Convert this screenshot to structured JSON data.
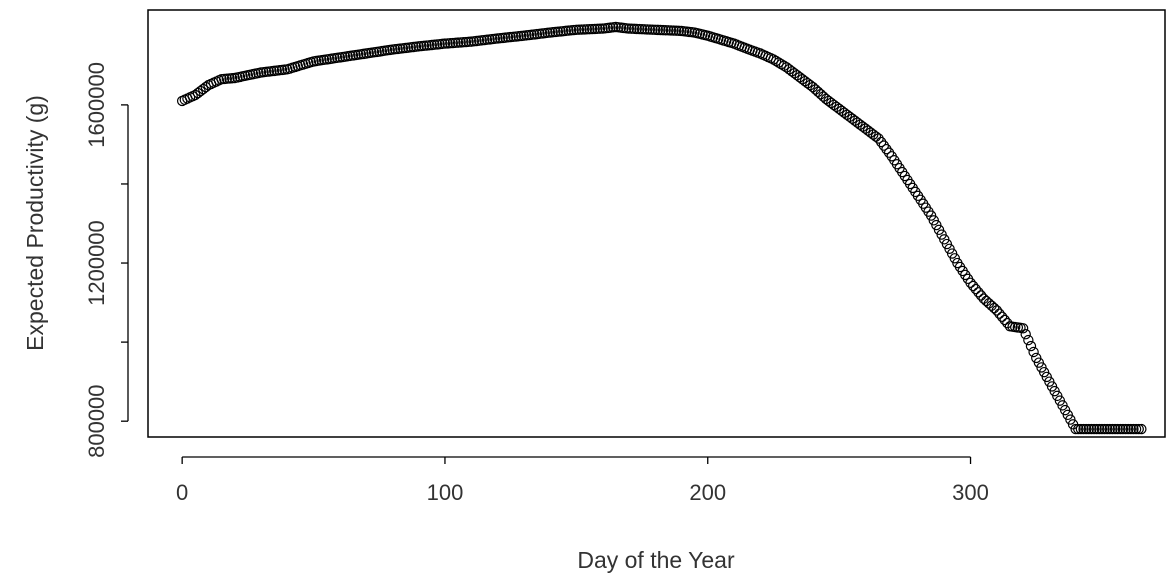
{
  "chart_data": {
    "type": "scatter",
    "title": "",
    "xlabel": "Day of the Year",
    "ylabel": "Expected Productivity (g)",
    "xlim": [
      -13,
      374
    ],
    "ylim": [
      760000,
      1840000
    ],
    "xticks": [
      0,
      100,
      200,
      300
    ],
    "yticks": [
      800000,
      1200000,
      1600000
    ],
    "ytick_labels": [
      "800000",
      "1200000",
      "1600000"
    ],
    "yticks_minor": [
      1000000,
      1400000
    ],
    "grid": false,
    "legend": "none",
    "marker": "open-circle",
    "series": [
      {
        "x": [
          0,
          5,
          10,
          15,
          20,
          25,
          30,
          40,
          50,
          60,
          70,
          80,
          90,
          100,
          110,
          120,
          130,
          140,
          150,
          160,
          165,
          170,
          180,
          190,
          195,
          200,
          205,
          210,
          215,
          220,
          225,
          230,
          235,
          240,
          245,
          250,
          255,
          260,
          265,
          270,
          275,
          280,
          285,
          290,
          295,
          300,
          305,
          310,
          315,
          320,
          325,
          330,
          335,
          340,
          345,
          350,
          355,
          360,
          365
        ],
        "y": [
          1610000,
          1625000,
          1650000,
          1665000,
          1668000,
          1675000,
          1682000,
          1690000,
          1710000,
          1720000,
          1730000,
          1740000,
          1748000,
          1755000,
          1760000,
          1768000,
          1775000,
          1783000,
          1790000,
          1793000,
          1797000,
          1793000,
          1790000,
          1787000,
          1783000,
          1775000,
          1765000,
          1755000,
          1742000,
          1730000,
          1715000,
          1695000,
          1670000,
          1645000,
          1615000,
          1590000,
          1565000,
          1540000,
          1515000,
          1470000,
          1420000,
          1370000,
          1320000,
          1260000,
          1200000,
          1150000,
          1110000,
          1080000,
          1040000,
          1035000,
          960000,
          900000,
          840000,
          780000,
          780000,
          780000,
          780000,
          780000,
          780000
        ]
      }
    ]
  }
}
